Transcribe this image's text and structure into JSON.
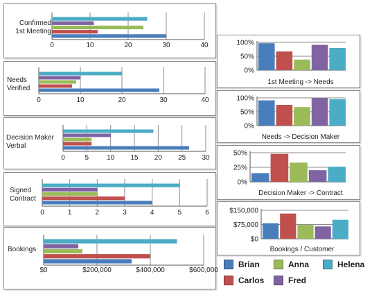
{
  "series_names": [
    "Brian",
    "Carlos",
    "Anna",
    "Fred",
    "Helena"
  ],
  "series_colors": [
    "#4A7EBB",
    "#C0504D",
    "#9BBB59",
    "#8064A2",
    "#4BACC6"
  ],
  "legend": {
    "items": [
      {
        "name": "Brian",
        "color": "#4A7EBB"
      },
      {
        "name": "Anna",
        "color": "#9BBB59"
      },
      {
        "name": "Helena",
        "color": "#4BACC6"
      },
      {
        "name": "Carlos",
        "color": "#C0504D"
      },
      {
        "name": "Fred",
        "color": "#8064A2"
      }
    ]
  },
  "chart_data": [
    {
      "id": "confirmed",
      "type": "bar",
      "orientation": "horizontal",
      "category_label": "Confirmed\n1st Meeting",
      "series": [
        {
          "name": "Brian",
          "values": [
            30
          ]
        },
        {
          "name": "Carlos",
          "values": [
            12
          ]
        },
        {
          "name": "Anna",
          "values": [
            24
          ]
        },
        {
          "name": "Fred",
          "values": [
            11
          ]
        },
        {
          "name": "Helena",
          "values": [
            25
          ]
        }
      ],
      "xlim": [
        0,
        40
      ],
      "ticks": [
        "0",
        "10",
        "20",
        "30",
        "40"
      ],
      "grid": true
    },
    {
      "id": "needs",
      "type": "bar",
      "orientation": "horizontal",
      "category_label": "Needs\nVerified",
      "series": [
        {
          "name": "Brian",
          "values": [
            29
          ]
        },
        {
          "name": "Carlos",
          "values": [
            8
          ]
        },
        {
          "name": "Anna",
          "values": [
            9
          ]
        },
        {
          "name": "Fred",
          "values": [
            10
          ]
        },
        {
          "name": "Helena",
          "values": [
            20
          ]
        }
      ],
      "xlim": [
        0,
        40
      ],
      "ticks": [
        "0",
        "10",
        "20",
        "30",
        "40"
      ],
      "grid": true
    },
    {
      "id": "decision",
      "type": "bar",
      "orientation": "horizontal",
      "category_label": "Decision Maker\nVerbal",
      "series": [
        {
          "name": "Brian",
          "values": [
            26.5
          ]
        },
        {
          "name": "Carlos",
          "values": [
            6
          ]
        },
        {
          "name": "Anna",
          "values": [
            6
          ]
        },
        {
          "name": "Fred",
          "values": [
            10
          ]
        },
        {
          "name": "Helena",
          "values": [
            19
          ]
        }
      ],
      "xlim": [
        0,
        30
      ],
      "ticks": [
        "0",
        "5",
        "10",
        "15",
        "20",
        "25",
        "30"
      ],
      "grid": true
    },
    {
      "id": "signed",
      "type": "bar",
      "orientation": "horizontal",
      "category_label": "Signed\nContract",
      "series": [
        {
          "name": "Brian",
          "values": [
            4
          ]
        },
        {
          "name": "Carlos",
          "values": [
            3
          ]
        },
        {
          "name": "Anna",
          "values": [
            2
          ]
        },
        {
          "name": "Fred",
          "values": [
            2
          ]
        },
        {
          "name": "Helena",
          "values": [
            5
          ]
        }
      ],
      "xlim": [
        0,
        6
      ],
      "ticks": [
        "0",
        "1",
        "2",
        "3",
        "4",
        "5",
        "6"
      ],
      "grid": true
    },
    {
      "id": "bookings",
      "type": "bar",
      "orientation": "horizontal",
      "category_label": "Bookings",
      "series": [
        {
          "name": "Brian",
          "values": [
            330000
          ]
        },
        {
          "name": "Carlos",
          "values": [
            400000
          ]
        },
        {
          "name": "Anna",
          "values": [
            145000
          ]
        },
        {
          "name": "Fred",
          "values": [
            130000
          ]
        },
        {
          "name": "Helena",
          "values": [
            500000
          ]
        }
      ],
      "xlim": [
        0,
        600000
      ],
      "ticks": [
        "$0",
        "$200,000",
        "$400,000",
        "$600,000"
      ],
      "grid": true
    },
    {
      "id": "conv1",
      "type": "bar",
      "orientation": "vertical",
      "xlabel": "1st Meeting -> Needs",
      "series": [
        {
          "name": "Brian",
          "values": [
            97
          ]
        },
        {
          "name": "Carlos",
          "values": [
            67
          ]
        },
        {
          "name": "Anna",
          "values": [
            38
          ]
        },
        {
          "name": "Fred",
          "values": [
            91
          ]
        },
        {
          "name": "Helena",
          "values": [
            80
          ]
        }
      ],
      "ylim": [
        0,
        100
      ],
      "ticks": [
        "0%",
        "50%",
        "100%"
      ],
      "grid": true
    },
    {
      "id": "conv2",
      "type": "bar",
      "orientation": "vertical",
      "xlabel": "Needs -> Decision Maker",
      "series": [
        {
          "name": "Brian",
          "values": [
            91
          ]
        },
        {
          "name": "Carlos",
          "values": [
            75
          ]
        },
        {
          "name": "Anna",
          "values": [
            67
          ]
        },
        {
          "name": "Fred",
          "values": [
            100
          ]
        },
        {
          "name": "Helena",
          "values": [
            95
          ]
        }
      ],
      "ylim": [
        0,
        100
      ],
      "ticks": [
        "0%",
        "50%",
        "100%"
      ],
      "grid": true
    },
    {
      "id": "conv3",
      "type": "bar",
      "orientation": "vertical",
      "xlabel": "Decision Maker -> Contract",
      "series": [
        {
          "name": "Brian",
          "values": [
            15
          ]
        },
        {
          "name": "Carlos",
          "values": [
            48
          ]
        },
        {
          "name": "Anna",
          "values": [
            33
          ]
        },
        {
          "name": "Fred",
          "values": [
            20
          ]
        },
        {
          "name": "Helena",
          "values": [
            26
          ]
        }
      ],
      "ylim": [
        0,
        50
      ],
      "ticks": [
        "0%",
        "25%",
        "50%"
      ],
      "grid": true
    },
    {
      "id": "bpc",
      "type": "bar",
      "orientation": "vertical",
      "xlabel": "Bookings / Customer",
      "series": [
        {
          "name": "Brian",
          "values": [
            82000
          ]
        },
        {
          "name": "Carlos",
          "values": [
            133000
          ]
        },
        {
          "name": "Anna",
          "values": [
            73000
          ]
        },
        {
          "name": "Fred",
          "values": [
            65000
          ]
        },
        {
          "name": "Helena",
          "values": [
            100000
          ]
        }
      ],
      "ylim": [
        0,
        150000
      ],
      "ticks": [
        "$0",
        "$75,000",
        "$150,000"
      ],
      "grid": true
    }
  ]
}
